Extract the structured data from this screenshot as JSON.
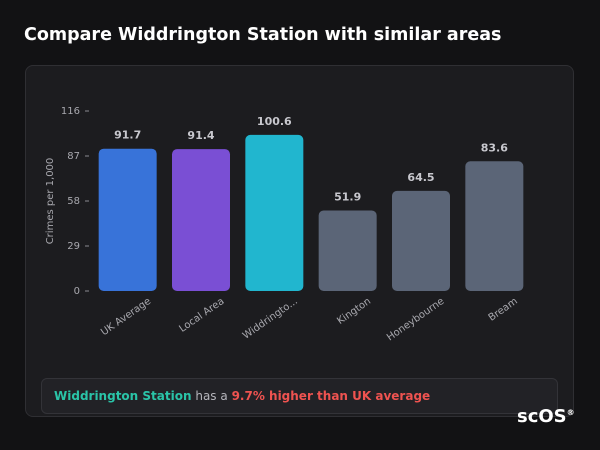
{
  "title": "Compare Widdrington Station with similar areas",
  "chart_data": {
    "type": "bar",
    "y_label": "Crimes per 1,000",
    "categories": [
      "UK Average",
      "Local Area",
      "Widdringto...",
      "Kington",
      "Honeybourne",
      "Bream"
    ],
    "values": [
      91.7,
      91.4,
      100.6,
      51.9,
      64.5,
      83.6
    ],
    "colors": [
      "#3873d9",
      "#7a4fd4",
      "#21b6cf",
      "#5b6577",
      "#5b6577",
      "#5b6577"
    ],
    "ylim": [
      0,
      116
    ],
    "yticks": [
      0,
      29,
      58,
      87,
      116
    ]
  },
  "note": {
    "area": "Widdrington Station",
    "text": "has a",
    "highlight": "9.7% higher than UK average"
  },
  "logo": {
    "text": "scOS",
    "mark": "®"
  }
}
